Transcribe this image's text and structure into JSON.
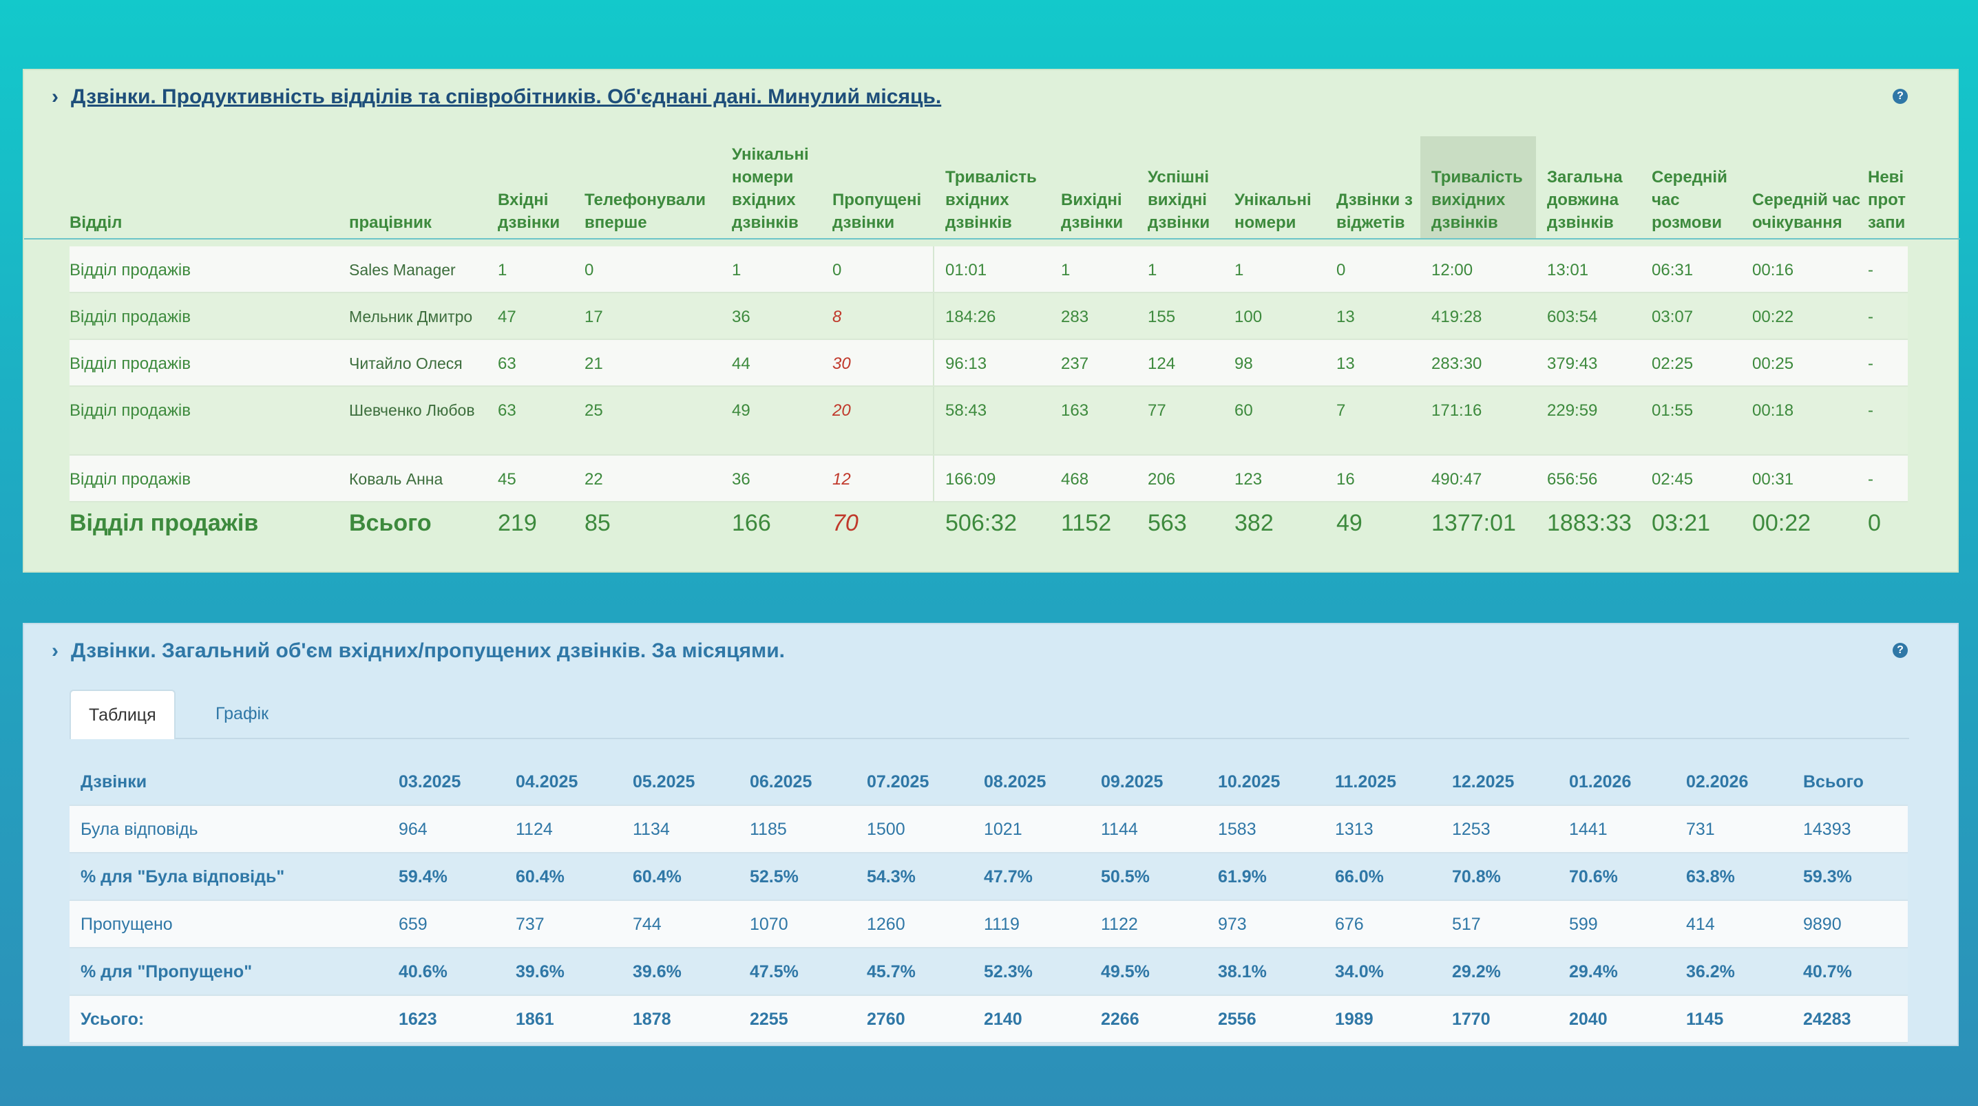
{
  "panel1": {
    "title": "Дзвінки. Продуктивність відділів та співробітників. Об'єднані дані. Минулий місяць.",
    "help_icon": "?",
    "headers": [
      "Відділ",
      "працівник",
      "Вхідні дзвінки",
      "Телефонували вперше",
      "Унікальні номери вхідних дзвінків",
      "Пропущені дзвінки",
      "Тривалість вхідних дзвінків",
      "Вихідні дзвінки",
      "Успішні вихідні дзвінки",
      "Унікальні номери",
      "Дзвінки з віджетів",
      "Тривалість вихідних дзвінків",
      "Загальна довжина дзвінків",
      "Середній час розмови",
      "Середній час очікування",
      "Неві прот запи"
    ],
    "rows": [
      [
        "Відділ продажів",
        "Sales Manager",
        "1",
        "0",
        "1",
        "0",
        "01:01",
        "1",
        "1",
        "1",
        "0",
        "12:00",
        "13:01",
        "06:31",
        "00:16",
        "-"
      ],
      [
        "Відділ продажів",
        "Мельник Дмитро",
        "47",
        "17",
        "36",
        "8",
        "184:26",
        "283",
        "155",
        "100",
        "13",
        "419:28",
        "603:54",
        "03:07",
        "00:22",
        "-"
      ],
      [
        "Відділ продажів",
        "Читайло Олеся",
        "63",
        "21",
        "44",
        "30",
        "96:13",
        "237",
        "124",
        "98",
        "13",
        "283:30",
        "379:43",
        "02:25",
        "00:25",
        "-"
      ],
      [
        "Відділ продажів",
        "Шевченко Любов",
        "63",
        "25",
        "49",
        "20",
        "58:43",
        "163",
        "77",
        "60",
        "7",
        "171:16",
        "229:59",
        "01:55",
        "00:18",
        "-"
      ],
      [
        "Відділ продажів",
        "Коваль Анна",
        "45",
        "22",
        "36",
        "12",
        "166:09",
        "468",
        "206",
        "123",
        "16",
        "490:47",
        "656:56",
        "02:45",
        "00:31",
        "-"
      ]
    ],
    "total": [
      "Відділ продажів",
      "Всього",
      "219",
      "85",
      "166",
      "70",
      "506:32",
      "1152",
      "563",
      "382",
      "49",
      "1377:01",
      "1883:33",
      "03:21",
      "00:22",
      "0"
    ]
  },
  "panel2": {
    "title": "Дзвінки. Загальний об'єм вхідних/пропущених дзвінків. За місяцями.",
    "help_icon": "?",
    "tabs": [
      "Таблиця",
      "Графік"
    ],
    "headers": [
      "Дзвінки",
      "03.2025",
      "04.2025",
      "05.2025",
      "06.2025",
      "07.2025",
      "08.2025",
      "09.2025",
      "10.2025",
      "11.2025",
      "12.2025",
      "01.2026",
      "02.2026",
      "Всього"
    ],
    "rows": [
      [
        "Була відповідь",
        "964",
        "1124",
        "1134",
        "1185",
        "1500",
        "1021",
        "1144",
        "1583",
        "1313",
        "1253",
        "1441",
        "731",
        "14393"
      ],
      [
        "% для \"Була відповідь\"",
        "59.4%",
        "60.4%",
        "60.4%",
        "52.5%",
        "54.3%",
        "47.7%",
        "50.5%",
        "61.9%",
        "66.0%",
        "70.8%",
        "70.6%",
        "63.8%",
        "59.3%"
      ],
      [
        "Пропущено",
        "659",
        "737",
        "744",
        "1070",
        "1260",
        "1119",
        "1122",
        "973",
        "676",
        "517",
        "599",
        "414",
        "9890"
      ],
      [
        "% для \"Пропущено\"",
        "40.6%",
        "39.6%",
        "39.6%",
        "47.5%",
        "45.7%",
        "52.3%",
        "49.5%",
        "38.1%",
        "34.0%",
        "29.2%",
        "29.4%",
        "36.2%",
        "40.7%"
      ],
      [
        "Усього:",
        "1623",
        "1861",
        "1878",
        "2255",
        "2760",
        "2140",
        "2266",
        "2556",
        "1989",
        "1770",
        "2040",
        "1145",
        "24283"
      ]
    ]
  }
}
